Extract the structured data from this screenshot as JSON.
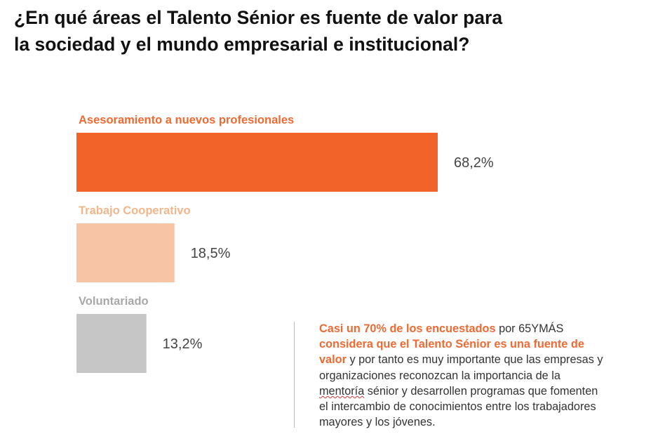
{
  "title_lines": [
    "¿En qué áreas el Talento Sénior es fuente de valor para",
    "la sociedad y el mundo empresarial e institucional?"
  ],
  "chart_data": {
    "type": "bar",
    "orientation": "horizontal",
    "title": "¿En qué áreas el Talento Sénior es fuente de valor para la sociedad y el mundo empresarial e institucional?",
    "categories": [
      "Asesoramiento a nuevos profesionales",
      "Trabajo Cooperativo",
      "Voluntariado"
    ],
    "values": [
      68.2,
      18.5,
      13.2
    ],
    "value_labels": [
      "68,2%",
      "18,5%",
      "13,2%"
    ],
    "unit": "%",
    "bar_colors": [
      "#F26329",
      "#F7C5A5",
      "#C6C6C6"
    ],
    "label_colors": [
      "#EE6A33",
      "#F2B68C",
      "#A8A8A8"
    ],
    "grid": false,
    "legend": "none"
  },
  "note": {
    "lines": [
      [
        {
          "t": "Casi un 70% de los encuestados",
          "hl": true
        },
        {
          "t": " por 65YMÁS"
        }
      ],
      [
        {
          "t": "considera que el Talento Sénior es una fuente de",
          "hl": true
        }
      ],
      [
        {
          "t": "valor",
          "hl": true
        },
        {
          "t": "  y por tanto es muy importante que las empresas y"
        }
      ],
      [
        {
          "t": "organizaciones reconozcan la importancia de la"
        }
      ],
      [
        {
          "t": "mentoría",
          "sq": true
        },
        {
          "t": " sénior y desarrollen programas que fomenten"
        }
      ],
      [
        {
          "t": "el intercambio de conocimientos entre los trabajadores"
        }
      ],
      [
        {
          "t": "mayores y los jóvenes."
        }
      ]
    ]
  }
}
